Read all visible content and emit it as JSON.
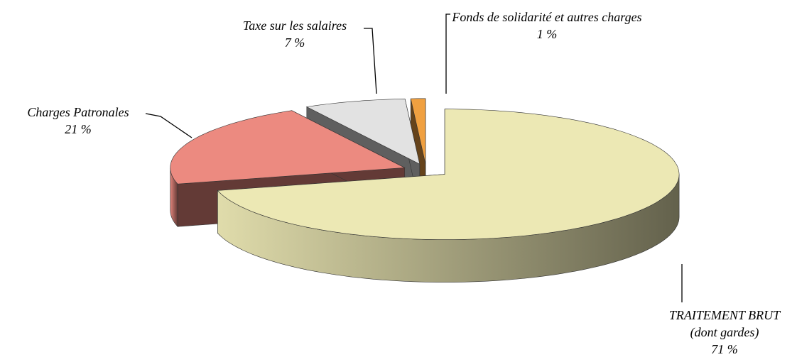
{
  "chart_data": {
    "type": "pie",
    "categories": [
      "TRAITEMENT BRUT (dont gardes)",
      "Charges Patronales",
      "Taxe sur les salaires",
      "Fonds de solidarité et autres charges"
    ],
    "values": [
      71,
      21,
      7,
      1
    ],
    "value_labels": [
      "71 %",
      "21 %",
      "7 %",
      "1 %"
    ],
    "colors": [
      "#ece8b4",
      "#ec8a80",
      "#e2e2e2",
      "#f0a040"
    ]
  }
}
